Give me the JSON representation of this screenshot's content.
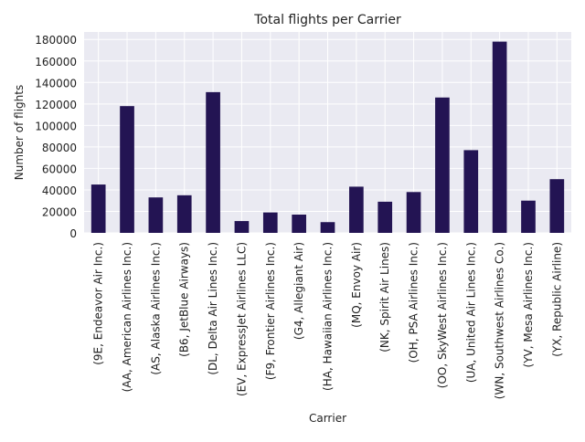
{
  "chart_data": {
    "type": "bar",
    "title": "Total flights per Carrier",
    "xlabel": "Carrier",
    "ylabel": "Number of flights",
    "ylim": [
      0,
      187000
    ],
    "yticks": [
      0,
      20000,
      40000,
      60000,
      80000,
      100000,
      120000,
      140000,
      160000,
      180000
    ],
    "grid": true,
    "bar_color": "#231453",
    "plot_background": "#eaeaf2",
    "grid_color": "#ffffff",
    "categories": [
      "(9E, Endeavor Air Inc.)",
      "(AA, American Airlines Inc.)",
      "(AS, Alaska Airlines Inc.)",
      "(B6, JetBlue Airways)",
      "(DL, Delta Air Lines Inc.)",
      "(EV, ExpressJet Airlines LLC)",
      "(F9, Frontier Airlines Inc.)",
      "(G4, Allegiant Air)",
      "(HA, Hawaiian Airlines Inc.)",
      "(MQ, Envoy Air)",
      "(NK, Spirit Air Lines)",
      "(OH, PSA Airlines Inc.)",
      "(OO, SkyWest Airlines Inc.)",
      "(UA, United Air Lines Inc.)",
      "(WN, Southwest Airlines Co.)",
      "(YV, Mesa Airlines Inc.)",
      "(YX, Republic Airline)"
    ],
    "values": [
      45000,
      118000,
      33000,
      35000,
      131000,
      11000,
      19000,
      17000,
      10000,
      43000,
      29000,
      38000,
      126000,
      77000,
      178000,
      30000,
      50000
    ]
  }
}
